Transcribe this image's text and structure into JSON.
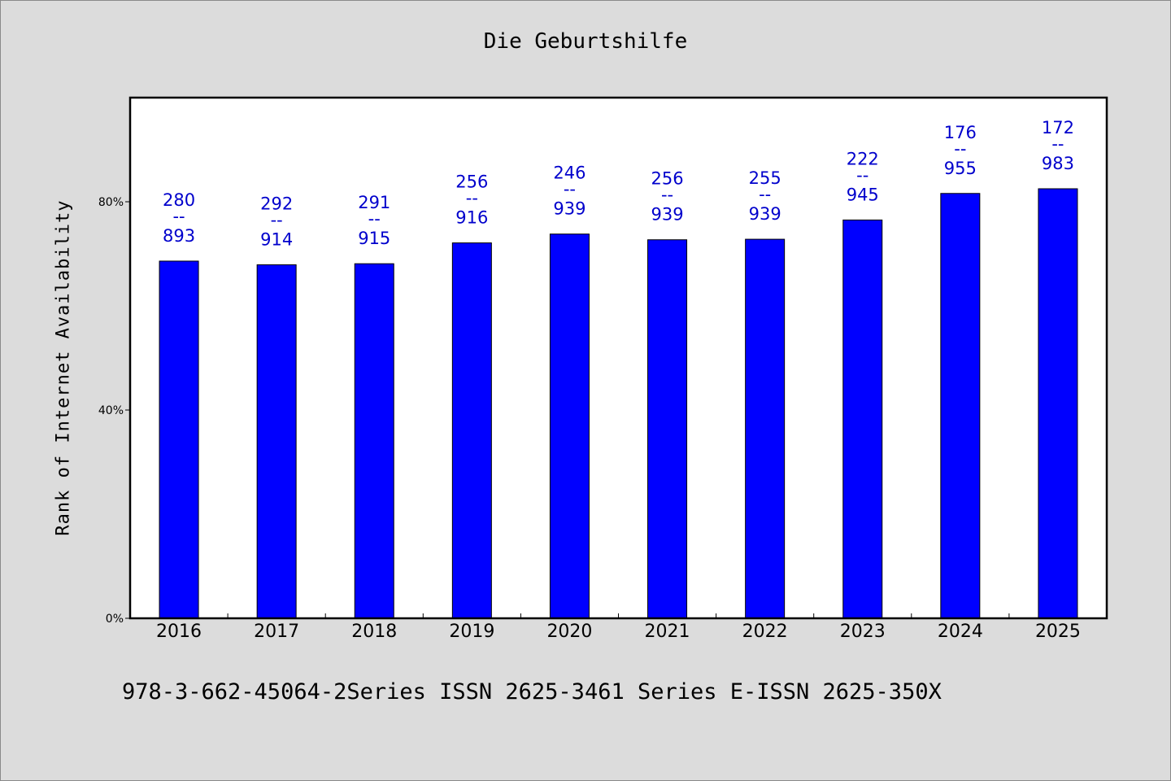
{
  "title": "Die Geburtshilfe",
  "footer": "978-3-662-45064-2Series ISSN 2625-3461 Series E-ISSN 2625-350X",
  "colors": {
    "bar": "#0000ff",
    "label": "#0000cc",
    "plot_bg": "#ffffff",
    "page_bg": "#dcdcdc"
  },
  "chart_data": {
    "type": "bar",
    "title": "Die Geburtshilfe",
    "xlabel": "",
    "ylabel": "Rank of Internet Availability",
    "ylim": [
      0,
      100
    ],
    "yticks": [
      {
        "value": 0,
        "label": "0%"
      },
      {
        "value": 40,
        "label": "40%"
      },
      {
        "value": 80,
        "label": "80%"
      }
    ],
    "categories": [
      "2016",
      "2017",
      "2018",
      "2019",
      "2020",
      "2021",
      "2022",
      "2023",
      "2024",
      "2025"
    ],
    "values": [
      68.6,
      67.9,
      68.1,
      72.1,
      73.8,
      72.7,
      72.8,
      76.5,
      81.6,
      82.5
    ],
    "data_labels": [
      {
        "top": "280",
        "sep": "--",
        "bottom": "893"
      },
      {
        "top": "292",
        "sep": "--",
        "bottom": "914"
      },
      {
        "top": "291",
        "sep": "--",
        "bottom": "915"
      },
      {
        "top": "256",
        "sep": "--",
        "bottom": "916"
      },
      {
        "top": "246",
        "sep": "--",
        "bottom": "939"
      },
      {
        "top": "256",
        "sep": "--",
        "bottom": "939"
      },
      {
        "top": "255",
        "sep": "--",
        "bottom": "939"
      },
      {
        "top": "222",
        "sep": "--",
        "bottom": "945"
      },
      {
        "top": "176",
        "sep": "--",
        "bottom": "955"
      },
      {
        "top": "172",
        "sep": "--",
        "bottom": "983"
      }
    ],
    "grid": false,
    "legend": "none"
  }
}
